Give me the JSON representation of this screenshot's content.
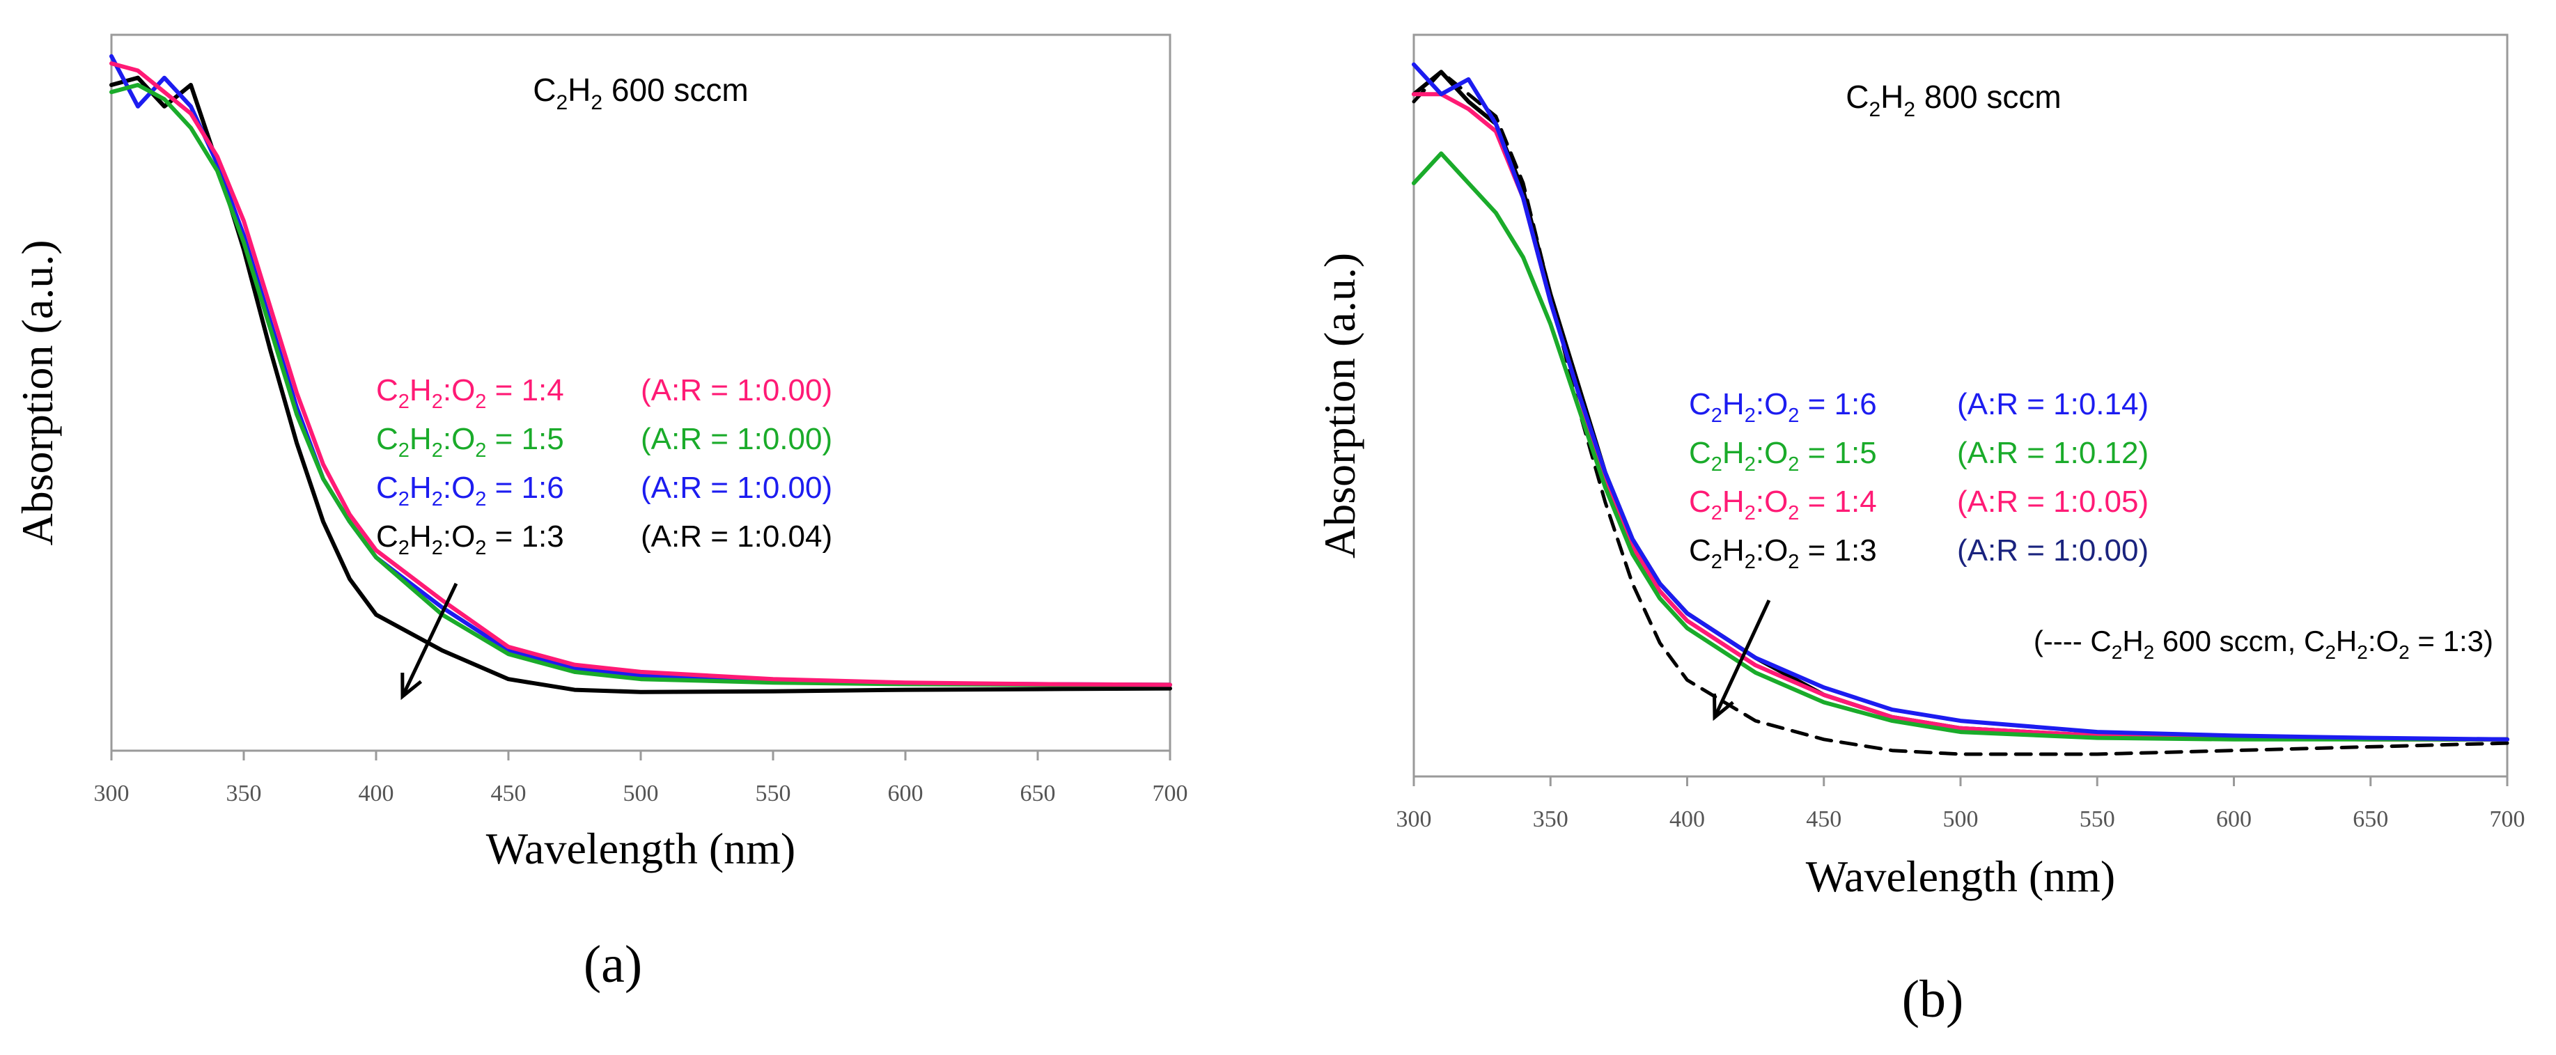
{
  "figure": {
    "panels": [
      "(a)",
      "(b)"
    ]
  },
  "chart_data": [
    {
      "type": "line",
      "panel_label": "(a)",
      "title_parts": [
        "C",
        "2",
        "H",
        "2",
        " 600 sccm"
      ],
      "xlabel": "Wavelength (nm)",
      "ylabel": "Absorption (a.u.)",
      "xlim": [
        300,
        700
      ],
      "ylim": [
        0,
        1
      ],
      "xticks": [
        "300",
        "350",
        "400",
        "450",
        "500",
        "550",
        "600",
        "650",
        "700"
      ],
      "x": [
        300,
        310,
        320,
        330,
        340,
        350,
        360,
        370,
        380,
        390,
        400,
        425,
        450,
        475,
        500,
        550,
        600,
        650,
        700
      ],
      "series": [
        {
          "name": "C2H2:O2 = 1:4",
          "color": "#ff1a75",
          "dashed": false,
          "legend_parts": [
            "C",
            "2",
            "H",
            "2",
            ":O",
            "2",
            " = 1:4"
          ],
          "ratio_label": "(A:R = 1:0.00)",
          "values": [
            0.96,
            0.95,
            0.92,
            0.89,
            0.83,
            0.74,
            0.62,
            0.5,
            0.4,
            0.33,
            0.28,
            0.21,
            0.145,
            0.12,
            0.11,
            0.1,
            0.095,
            0.093,
            0.092
          ]
        },
        {
          "name": "C2H2:O2 = 1:5",
          "color": "#1aab2a",
          "dashed": false,
          "legend_parts": [
            "C",
            "2",
            "H",
            "2",
            ":O",
            "2",
            " = 1:5"
          ],
          "ratio_label": "(A:R = 1:0.00)",
          "values": [
            0.92,
            0.93,
            0.91,
            0.87,
            0.81,
            0.71,
            0.59,
            0.47,
            0.38,
            0.32,
            0.27,
            0.19,
            0.135,
            0.11,
            0.1,
            0.095,
            0.093,
            0.092,
            0.092
          ]
        },
        {
          "name": "C2H2:O2 = 1:6",
          "color": "#1c1cf0",
          "dashed": false,
          "legend_parts": [
            "C",
            "2",
            "H",
            "2",
            ":O",
            "2",
            " = 1:6"
          ],
          "ratio_label": "(A:R = 1:0.00)",
          "values": [
            0.97,
            0.9,
            0.94,
            0.9,
            0.82,
            0.72,
            0.6,
            0.48,
            0.38,
            0.32,
            0.27,
            0.2,
            0.14,
            0.115,
            0.105,
            0.097,
            0.094,
            0.093,
            0.092
          ]
        },
        {
          "name": "C2H2:O2 = 1:3",
          "color": "#000000",
          "dashed": false,
          "legend_parts": [
            "C",
            "2",
            "H",
            "2",
            ":O",
            "2",
            " = 1:3"
          ],
          "ratio_label": "(A:R = 1:0.04)",
          "values": [
            0.93,
            0.94,
            0.9,
            0.93,
            0.82,
            0.7,
            0.56,
            0.43,
            0.32,
            0.24,
            0.19,
            0.14,
            0.1,
            0.085,
            0.082,
            0.083,
            0.085,
            0.086,
            0.087
          ]
        }
      ]
    },
    {
      "type": "line",
      "panel_label": "(b)",
      "title_parts": [
        "C",
        "2",
        "H",
        "2",
        " 800 sccm"
      ],
      "xlabel": "Wavelength (nm)",
      "ylabel": "Absorption (a.u.)",
      "xlim": [
        300,
        700
      ],
      "ylim": [
        0,
        1
      ],
      "xticks": [
        "300",
        "350",
        "400",
        "450",
        "500",
        "550",
        "600",
        "650",
        "700"
      ],
      "x": [
        300,
        310,
        320,
        330,
        340,
        350,
        360,
        370,
        380,
        390,
        400,
        425,
        450,
        475,
        500,
        550,
        600,
        650,
        700
      ],
      "annotation_parts": [
        "(---- C",
        "2",
        "H",
        "2",
        " 600 sccm, C",
        "2",
        "H",
        "2",
        ":O",
        "2",
        " = 1:3)"
      ],
      "series": [
        {
          "name": "C2H2:O2 = 1:6",
          "color": "#1c1cf0",
          "dashed": false,
          "legend_parts": [
            "C",
            "2",
            "H",
            "2",
            ":O",
            "2",
            " = 1:6"
          ],
          "ratio_label": "(A:R = 1:0.14)",
          "values": [
            0.96,
            0.92,
            0.94,
            0.88,
            0.78,
            0.64,
            0.52,
            0.41,
            0.32,
            0.26,
            0.22,
            0.16,
            0.12,
            0.09,
            0.075,
            0.06,
            0.055,
            0.052,
            0.05
          ]
        },
        {
          "name": "C2H2:O2 = 1:5",
          "color": "#1aab2a",
          "dashed": false,
          "legend_parts": [
            "C",
            "2",
            "H",
            "2",
            ":O",
            "2",
            " = 1:5"
          ],
          "ratio_label": "(A:R = 1:0.12)",
          "values": [
            0.8,
            0.84,
            0.8,
            0.76,
            0.7,
            0.61,
            0.5,
            0.39,
            0.3,
            0.24,
            0.2,
            0.14,
            0.1,
            0.075,
            0.06,
            0.052,
            0.05,
            0.05,
            0.05
          ]
        },
        {
          "name": "C2H2:O2 = 1:4",
          "color": "#ff1a75",
          "dashed": false,
          "legend_parts": [
            "C",
            "2",
            "H",
            "2",
            ":O",
            "2",
            " = 1:4"
          ],
          "ratio_label": "(A:R = 1:0.05)",
          "values": [
            0.92,
            0.92,
            0.9,
            0.87,
            0.78,
            0.64,
            0.52,
            0.4,
            0.31,
            0.25,
            0.21,
            0.15,
            0.11,
            0.08,
            0.065,
            0.055,
            0.052,
            0.05,
            0.05
          ]
        },
        {
          "name": "C2H2:O2 = 1:3",
          "color": "#000000",
          "dashed": false,
          "legend_parts": [
            "C",
            "2",
            "H",
            "2",
            ":O",
            "2",
            " = 1:3"
          ],
          "ratio_label": "(A:R = 1:0.00)",
          "ratio_color": "#1a237e",
          "values": [
            0.92,
            0.95,
            0.91,
            0.88,
            0.79,
            0.65,
            0.53,
            0.41,
            0.32,
            0.26,
            0.22,
            0.16,
            0.11,
            0.08,
            0.065,
            0.055,
            0.052,
            0.05,
            0.05
          ]
        },
        {
          "name": "C2H2 600 sccm, C2H2:O2 = 1:3",
          "color": "#000000",
          "dashed": true,
          "values": [
            0.91,
            0.95,
            0.92,
            0.89,
            0.8,
            0.65,
            0.5,
            0.37,
            0.26,
            0.18,
            0.13,
            0.075,
            0.05,
            0.035,
            0.03,
            0.03,
            0.035,
            0.04,
            0.045
          ]
        }
      ]
    }
  ]
}
